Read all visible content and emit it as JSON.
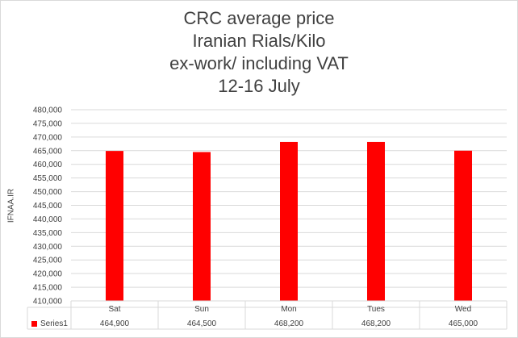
{
  "chart_data": {
    "type": "bar",
    "title_lines": [
      "CRC average price",
      "Iranian Rials/Kilo",
      "ex-work/ including VAT",
      "12-16  July"
    ],
    "ylabel": "IFNAA.IR",
    "xlabel": "",
    "categories": [
      "Sat",
      "Sun",
      "Mon",
      "Tues",
      "Wed"
    ],
    "series": [
      {
        "name": "Series1",
        "values": [
          464900,
          464500,
          468200,
          468200,
          465000
        ]
      }
    ],
    "value_labels": [
      "464,900",
      "464,500",
      "468,200",
      "468,200",
      "465,000"
    ],
    "ylim": [
      410000,
      480000
    ],
    "ytick_step": 5000,
    "yticks": [
      "410,000",
      "415,000",
      "420,000",
      "425,000",
      "430,000",
      "435,000",
      "440,000",
      "445,000",
      "450,000",
      "455,000",
      "460,000",
      "465,000",
      "470,000",
      "475,000",
      "480,000"
    ],
    "grid": true,
    "legend": "data-table",
    "bar_color": "#ff0000",
    "grid_color": "#d9d9d9"
  }
}
